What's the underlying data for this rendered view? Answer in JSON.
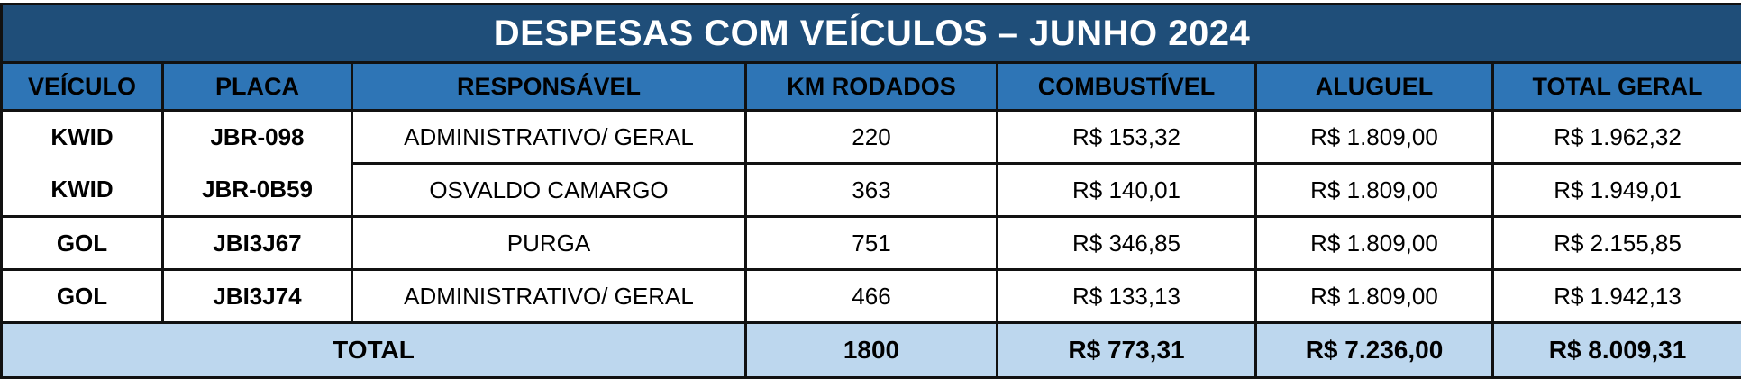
{
  "title": "DESPESAS COM VEÍCULOS – JUNHO  2024",
  "columns": [
    "VEÍCULO",
    "PLACA",
    "RESPONSÁVEL",
    "KM RODADOS",
    "COMBUSTÍVEL",
    "ALUGUEL",
    "TOTAL GERAL"
  ],
  "rows": [
    {
      "veiculo": "KWID",
      "placa": "JBR-098",
      "responsavel": "ADMINISTRATIVO/ GERAL",
      "km": "220",
      "combustivel": "R$ 153,32",
      "aluguel": "R$ 1.809,00",
      "total": "R$ 1.962,32"
    },
    {
      "veiculo": "KWID",
      "placa": "JBR-0B59",
      "responsavel": "OSVALDO CAMARGO",
      "km": "363",
      "combustivel": "R$ 140,01",
      "aluguel": "R$ 1.809,00",
      "total": "R$ 1.949,01"
    },
    {
      "veiculo": "GOL",
      "placa": "JBI3J67",
      "responsavel": "PURGA",
      "km": "751",
      "combustivel": "R$ 346,85",
      "aluguel": "R$ 1.809,00",
      "total": "R$ 2.155,85"
    },
    {
      "veiculo": "GOL",
      "placa": "JBI3J74",
      "responsavel": "ADMINISTRATIVO/ GERAL",
      "km": "466",
      "combustivel": "R$ 133,13",
      "aluguel": "R$ 1.809,00",
      "total": "R$ 1.942,13"
    }
  ],
  "totals": {
    "label": "TOTAL",
    "km": "1800",
    "combustivel": "R$ 773,31",
    "aluguel": "R$ 7.236,00",
    "total": "R$ 8.009,31"
  },
  "colors": {
    "title_bg": "#1f4e79",
    "header_bg": "#2e75b6",
    "total_bg": "#bdd7ee"
  }
}
